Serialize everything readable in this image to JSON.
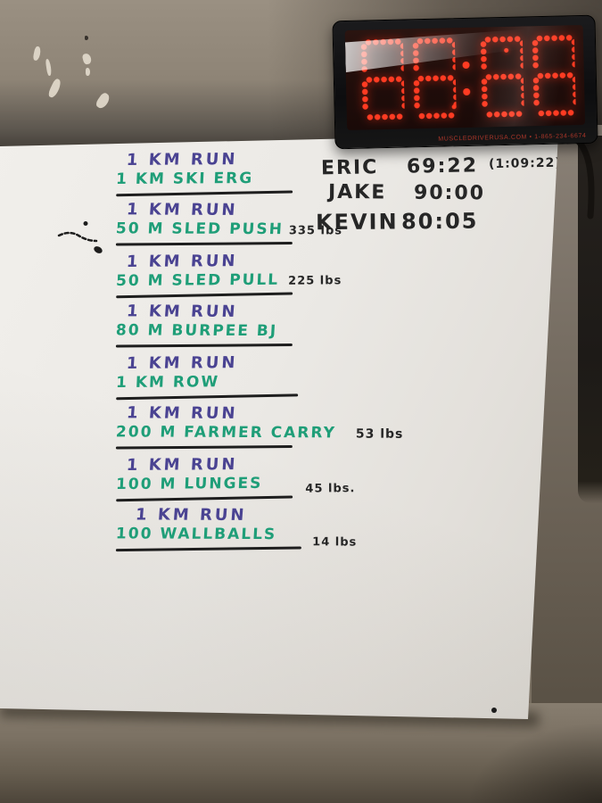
{
  "timer": {
    "display": "88:88",
    "brand_text": "MUSCLEDRIVERUSA.COM • 1-865-234-6674"
  },
  "whiteboard": {
    "intervals": [
      {
        "run": "1 KM RUN",
        "movement": "1 KM SKI ERG",
        "weight": ""
      },
      {
        "run": "1 KM RUN",
        "movement": "50 M SLED PUSH",
        "weight": "335 lbs"
      },
      {
        "run": "1 KM RUN",
        "movement": "50 M SLED PULL",
        "weight": "225 lbs"
      },
      {
        "run": "1 KM RUN",
        "movement": "80 M BURPEE BJ",
        "weight": ""
      },
      {
        "run": "1 KM RUN",
        "movement": "1 KM ROW",
        "weight": ""
      },
      {
        "run": "1 KM RUN",
        "movement": "200 M FARMER CARRY",
        "weight": "53 lbs"
      },
      {
        "run": "1 KM RUN",
        "movement": "100 M LUNGES",
        "weight": "45 lbs."
      },
      {
        "run": "1 KM RUN",
        "movement": "100 WALLBALLS",
        "weight": "14 lbs"
      }
    ],
    "scores": [
      {
        "name": "ERIC",
        "time": "69:22",
        "note": "(1:09:22)"
      },
      {
        "name": "JAKE",
        "time": "90:00",
        "note": ""
      },
      {
        "name": "KEVIN",
        "time": "80:05",
        "note": ""
      }
    ]
  },
  "colors": {
    "run_marker": "#4a4392",
    "movement_marker": "#1f9e78",
    "black_marker": "#262626",
    "led": "#ff3b22",
    "board": "#ebe9e5",
    "wall": "#9c9183"
  }
}
